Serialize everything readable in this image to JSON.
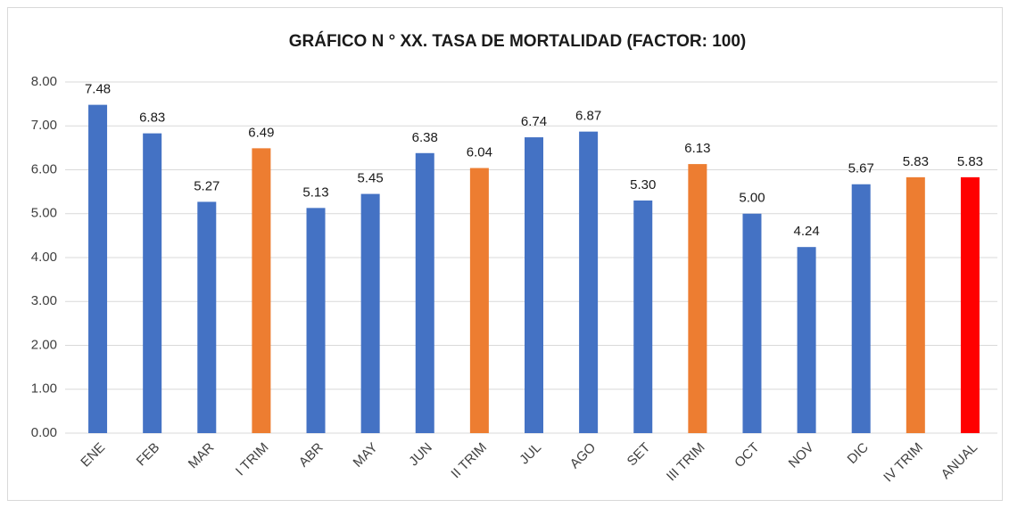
{
  "chart_data": {
    "type": "bar",
    "title": "GRÁFICO N ° XX. TASA DE MORTALIDAD (FACTOR: 100)",
    "categories": [
      "ENE",
      "FEB",
      "MAR",
      "I TRIM",
      "ABR",
      "MAY",
      "JUN",
      "II TRIM",
      "JUL",
      "AGO",
      "SET",
      "III TRIM",
      "OCT",
      "NOV",
      "DIC",
      "IV TRIM",
      "ANUAL"
    ],
    "values": [
      7.48,
      6.83,
      5.27,
      6.49,
      5.13,
      5.45,
      6.38,
      6.04,
      6.74,
      6.87,
      5.3,
      6.13,
      5.0,
      4.24,
      5.67,
      5.83,
      5.83
    ],
    "value_labels": [
      "7.48",
      "6.83",
      "5.27",
      "6.49",
      "5.13",
      "5.45",
      "6.38",
      "6.04",
      "6.74",
      "6.87",
      "5.30",
      "6.13",
      "5.00",
      "4.24",
      "5.67",
      "5.83",
      "5.83"
    ],
    "colors": [
      "#4472c4",
      "#4472c4",
      "#4472c4",
      "#ed7d31",
      "#4472c4",
      "#4472c4",
      "#4472c4",
      "#ed7d31",
      "#4472c4",
      "#4472c4",
      "#4472c4",
      "#ed7d31",
      "#4472c4",
      "#4472c4",
      "#4472c4",
      "#ed7d31",
      "#ff0000"
    ],
    "ylim": [
      0,
      8
    ],
    "yticks": [
      {
        "value": 0,
        "label": "0.00"
      },
      {
        "value": 1,
        "label": "1.00"
      },
      {
        "value": 2,
        "label": "2.00"
      },
      {
        "value": 3,
        "label": "3.00"
      },
      {
        "value": 4,
        "label": "4.00"
      },
      {
        "value": 5,
        "label": "5.00"
      },
      {
        "value": 6,
        "label": "6.00"
      },
      {
        "value": 7,
        "label": "7.00"
      },
      {
        "value": 8,
        "label": "8.00"
      }
    ],
    "grid": true
  }
}
